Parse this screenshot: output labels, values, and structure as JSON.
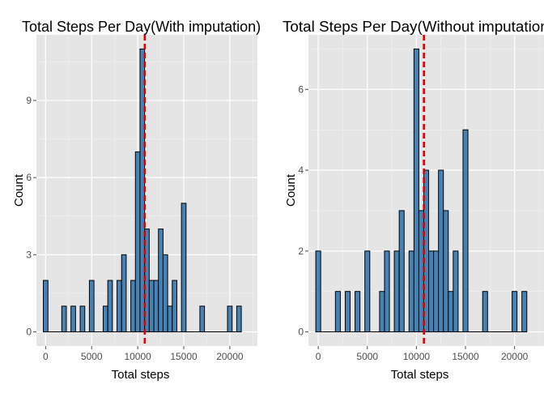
{
  "colors": {
    "panel_bg": "#E5E5E5",
    "grid_major": "#FFFFFF",
    "grid_minor": "#F2F2F2",
    "bar_fill": "#4682B4",
    "bar_stroke": "#000000",
    "mean_line": "#E00000",
    "tick_text": "#4D4D4D"
  },
  "chart_data": [
    {
      "type": "bar",
      "subtype": "histogram",
      "title": "Total Steps Per Day(With imputation)",
      "xlabel": "Total steps",
      "ylabel": "Count",
      "xlim": [
        -1000,
        23000
      ],
      "ylim": [
        -0.55,
        11.55
      ],
      "xticks": [
        0,
        5000,
        10000,
        15000,
        20000
      ],
      "yticks": [
        0,
        3,
        6,
        9
      ],
      "grid": true,
      "legend": "none",
      "binwidth": 500,
      "mean_line_x": 10766,
      "bins": [
        {
          "x": 0,
          "count": 2
        },
        {
          "x": 2000,
          "count": 1
        },
        {
          "x": 3000,
          "count": 1
        },
        {
          "x": 4000,
          "count": 1
        },
        {
          "x": 5000,
          "count": 2
        },
        {
          "x": 6500,
          "count": 1
        },
        {
          "x": 7000,
          "count": 2
        },
        {
          "x": 8000,
          "count": 2
        },
        {
          "x": 8500,
          "count": 3
        },
        {
          "x": 9500,
          "count": 2
        },
        {
          "x": 10000,
          "count": 7
        },
        {
          "x": 10500,
          "count": 11
        },
        {
          "x": 11000,
          "count": 4
        },
        {
          "x": 11500,
          "count": 2
        },
        {
          "x": 12000,
          "count": 2
        },
        {
          "x": 12500,
          "count": 4
        },
        {
          "x": 13000,
          "count": 3
        },
        {
          "x": 13500,
          "count": 1
        },
        {
          "x": 14000,
          "count": 2
        },
        {
          "x": 15000,
          "count": 5
        },
        {
          "x": 17000,
          "count": 1
        },
        {
          "x": 20000,
          "count": 1
        },
        {
          "x": 21000,
          "count": 1
        }
      ]
    },
    {
      "type": "bar",
      "subtype": "histogram",
      "title": "Total Steps Per Day(Without imputation)",
      "xlabel": "Total steps",
      "ylabel": "Count",
      "xlim": [
        -1000,
        23000
      ],
      "ylim": [
        -0.35,
        7.35
      ],
      "xticks": [
        0,
        5000,
        10000,
        15000,
        20000
      ],
      "yticks": [
        0,
        2,
        4,
        6
      ],
      "grid": true,
      "legend": "none",
      "binwidth": 500,
      "mean_line_x": 10766,
      "bins": [
        {
          "x": 0,
          "count": 2
        },
        {
          "x": 2000,
          "count": 1
        },
        {
          "x": 3000,
          "count": 1
        },
        {
          "x": 4000,
          "count": 1
        },
        {
          "x": 5000,
          "count": 2
        },
        {
          "x": 6500,
          "count": 1
        },
        {
          "x": 7000,
          "count": 2
        },
        {
          "x": 8000,
          "count": 2
        },
        {
          "x": 8500,
          "count": 3
        },
        {
          "x": 9500,
          "count": 2
        },
        {
          "x": 10000,
          "count": 7
        },
        {
          "x": 10500,
          "count": 3
        },
        {
          "x": 11000,
          "count": 4
        },
        {
          "x": 11500,
          "count": 2
        },
        {
          "x": 12000,
          "count": 2
        },
        {
          "x": 12500,
          "count": 4
        },
        {
          "x": 13000,
          "count": 3
        },
        {
          "x": 13500,
          "count": 1
        },
        {
          "x": 14000,
          "count": 2
        },
        {
          "x": 15000,
          "count": 5
        },
        {
          "x": 17000,
          "count": 1
        },
        {
          "x": 20000,
          "count": 1
        },
        {
          "x": 21000,
          "count": 1
        }
      ]
    }
  ]
}
